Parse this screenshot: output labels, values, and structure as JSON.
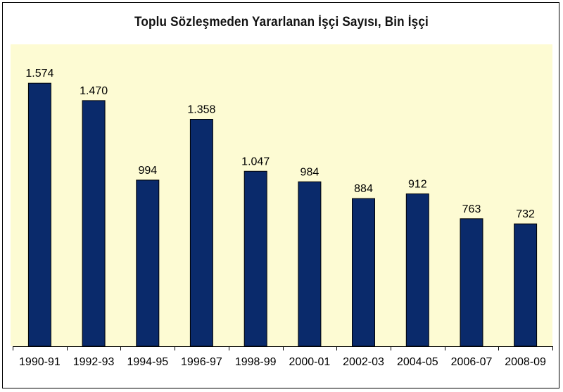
{
  "chart_data": {
    "type": "bar",
    "title": "Toplu Sözleşmeden Yararlanan İşçi Sayısı, Bin İşçi",
    "categories": [
      "1990-91",
      "1992-93",
      "1994-95",
      "1996-97",
      "1998-99",
      "2000-01",
      "2002-03",
      "2004-05",
      "2006-07",
      "2008-09"
    ],
    "values": [
      1574,
      1470,
      994,
      1358,
      1047,
      984,
      884,
      912,
      763,
      732
    ],
    "value_labels": [
      "1.574",
      "1.470",
      "994",
      "1.358",
      "1.047",
      "984",
      "884",
      "912",
      "763",
      "732"
    ],
    "xlabel": "",
    "ylabel": "",
    "ylim": [
      0,
      1800
    ],
    "grid": false,
    "colors": {
      "bar": "#0a2a6b",
      "plot_background": "#fdfbd3"
    }
  }
}
